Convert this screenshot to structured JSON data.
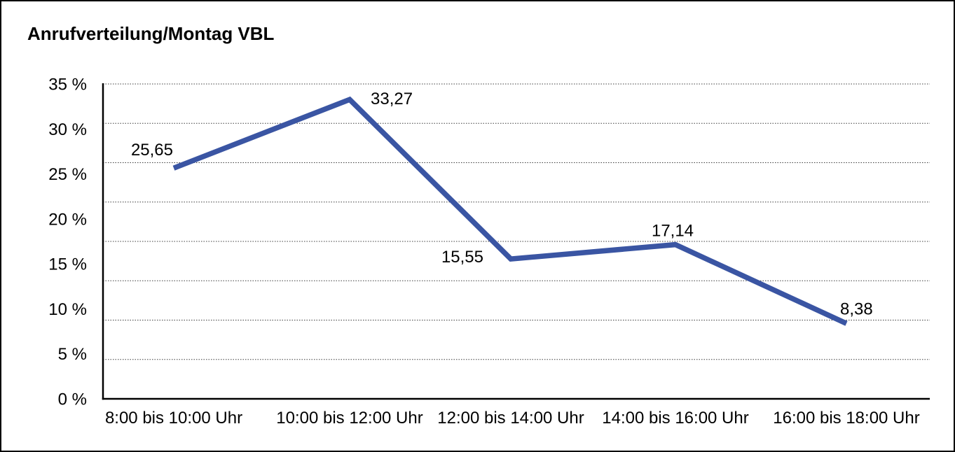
{
  "chart_data": {
    "type": "line",
    "title": "Anrufverteilung/Montag VBL",
    "categories": [
      "8:00 bis 10:00 Uhr",
      "10:00 bis 12:00 Uhr",
      "12:00 bis 14:00 Uhr",
      "14:00 bis 16:00 Uhr",
      "16:00 bis 18:00 Uhr"
    ],
    "values": [
      25.65,
      33.27,
      15.55,
      17.14,
      8.38
    ],
    "data_labels": [
      "25,65",
      "33,27",
      "15,55",
      "17,14",
      "8,38"
    ],
    "label_placements": [
      "above-left",
      "right",
      "left",
      "above",
      "above-right"
    ],
    "ytick_values": [
      35,
      30,
      25,
      20,
      15,
      10,
      5,
      0
    ],
    "ytick_labels": [
      "35 %",
      "30 %",
      "25 %",
      "20 %",
      "15 %",
      "10 %",
      "5 %",
      "0 %"
    ],
    "ylim": [
      0,
      35
    ],
    "xlabel": "",
    "ylabel": "",
    "grid": true,
    "gridline_rows": 8,
    "gridline_style": "dotted",
    "legend": "none",
    "line_color": "#3A55A3",
    "grid_color": "#3C3C3C",
    "axis_color": "#000000",
    "text_color": "#000000"
  }
}
